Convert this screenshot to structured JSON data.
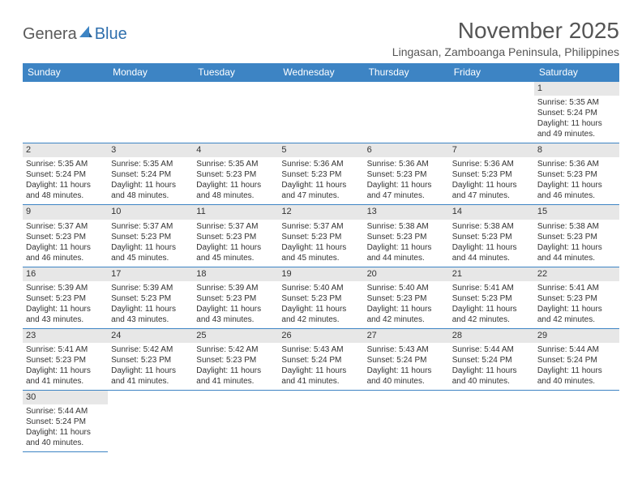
{
  "logo": {
    "part1": "Genera",
    "part2": "Blue"
  },
  "title": "November 2025",
  "location": "Lingasan, Zamboanga Peninsula, Philippines",
  "colors": {
    "header_bg": "#3d84c4",
    "header_text": "#ffffff",
    "daynum_bg": "#e7e7e7",
    "border": "#3d84c4",
    "title_text": "#555555",
    "body_text": "#333333",
    "logo_gray": "#5a5a5a",
    "logo_blue": "#2f6fad"
  },
  "day_headers": [
    "Sunday",
    "Monday",
    "Tuesday",
    "Wednesday",
    "Thursday",
    "Friday",
    "Saturday"
  ],
  "weeks": [
    [
      {
        "n": "",
        "sr": "",
        "ss": "",
        "dl": ""
      },
      {
        "n": "",
        "sr": "",
        "ss": "",
        "dl": ""
      },
      {
        "n": "",
        "sr": "",
        "ss": "",
        "dl": ""
      },
      {
        "n": "",
        "sr": "",
        "ss": "",
        "dl": ""
      },
      {
        "n": "",
        "sr": "",
        "ss": "",
        "dl": ""
      },
      {
        "n": "",
        "sr": "",
        "ss": "",
        "dl": ""
      },
      {
        "n": "1",
        "sr": "Sunrise: 5:35 AM",
        "ss": "Sunset: 5:24 PM",
        "dl": "Daylight: 11 hours and 49 minutes."
      }
    ],
    [
      {
        "n": "2",
        "sr": "Sunrise: 5:35 AM",
        "ss": "Sunset: 5:24 PM",
        "dl": "Daylight: 11 hours and 48 minutes."
      },
      {
        "n": "3",
        "sr": "Sunrise: 5:35 AM",
        "ss": "Sunset: 5:24 PM",
        "dl": "Daylight: 11 hours and 48 minutes."
      },
      {
        "n": "4",
        "sr": "Sunrise: 5:35 AM",
        "ss": "Sunset: 5:23 PM",
        "dl": "Daylight: 11 hours and 48 minutes."
      },
      {
        "n": "5",
        "sr": "Sunrise: 5:36 AM",
        "ss": "Sunset: 5:23 PM",
        "dl": "Daylight: 11 hours and 47 minutes."
      },
      {
        "n": "6",
        "sr": "Sunrise: 5:36 AM",
        "ss": "Sunset: 5:23 PM",
        "dl": "Daylight: 11 hours and 47 minutes."
      },
      {
        "n": "7",
        "sr": "Sunrise: 5:36 AM",
        "ss": "Sunset: 5:23 PM",
        "dl": "Daylight: 11 hours and 47 minutes."
      },
      {
        "n": "8",
        "sr": "Sunrise: 5:36 AM",
        "ss": "Sunset: 5:23 PM",
        "dl": "Daylight: 11 hours and 46 minutes."
      }
    ],
    [
      {
        "n": "9",
        "sr": "Sunrise: 5:37 AM",
        "ss": "Sunset: 5:23 PM",
        "dl": "Daylight: 11 hours and 46 minutes."
      },
      {
        "n": "10",
        "sr": "Sunrise: 5:37 AM",
        "ss": "Sunset: 5:23 PM",
        "dl": "Daylight: 11 hours and 45 minutes."
      },
      {
        "n": "11",
        "sr": "Sunrise: 5:37 AM",
        "ss": "Sunset: 5:23 PM",
        "dl": "Daylight: 11 hours and 45 minutes."
      },
      {
        "n": "12",
        "sr": "Sunrise: 5:37 AM",
        "ss": "Sunset: 5:23 PM",
        "dl": "Daylight: 11 hours and 45 minutes."
      },
      {
        "n": "13",
        "sr": "Sunrise: 5:38 AM",
        "ss": "Sunset: 5:23 PM",
        "dl": "Daylight: 11 hours and 44 minutes."
      },
      {
        "n": "14",
        "sr": "Sunrise: 5:38 AM",
        "ss": "Sunset: 5:23 PM",
        "dl": "Daylight: 11 hours and 44 minutes."
      },
      {
        "n": "15",
        "sr": "Sunrise: 5:38 AM",
        "ss": "Sunset: 5:23 PM",
        "dl": "Daylight: 11 hours and 44 minutes."
      }
    ],
    [
      {
        "n": "16",
        "sr": "Sunrise: 5:39 AM",
        "ss": "Sunset: 5:23 PM",
        "dl": "Daylight: 11 hours and 43 minutes."
      },
      {
        "n": "17",
        "sr": "Sunrise: 5:39 AM",
        "ss": "Sunset: 5:23 PM",
        "dl": "Daylight: 11 hours and 43 minutes."
      },
      {
        "n": "18",
        "sr": "Sunrise: 5:39 AM",
        "ss": "Sunset: 5:23 PM",
        "dl": "Daylight: 11 hours and 43 minutes."
      },
      {
        "n": "19",
        "sr": "Sunrise: 5:40 AM",
        "ss": "Sunset: 5:23 PM",
        "dl": "Daylight: 11 hours and 42 minutes."
      },
      {
        "n": "20",
        "sr": "Sunrise: 5:40 AM",
        "ss": "Sunset: 5:23 PM",
        "dl": "Daylight: 11 hours and 42 minutes."
      },
      {
        "n": "21",
        "sr": "Sunrise: 5:41 AM",
        "ss": "Sunset: 5:23 PM",
        "dl": "Daylight: 11 hours and 42 minutes."
      },
      {
        "n": "22",
        "sr": "Sunrise: 5:41 AM",
        "ss": "Sunset: 5:23 PM",
        "dl": "Daylight: 11 hours and 42 minutes."
      }
    ],
    [
      {
        "n": "23",
        "sr": "Sunrise: 5:41 AM",
        "ss": "Sunset: 5:23 PM",
        "dl": "Daylight: 11 hours and 41 minutes."
      },
      {
        "n": "24",
        "sr": "Sunrise: 5:42 AM",
        "ss": "Sunset: 5:23 PM",
        "dl": "Daylight: 11 hours and 41 minutes."
      },
      {
        "n": "25",
        "sr": "Sunrise: 5:42 AM",
        "ss": "Sunset: 5:23 PM",
        "dl": "Daylight: 11 hours and 41 minutes."
      },
      {
        "n": "26",
        "sr": "Sunrise: 5:43 AM",
        "ss": "Sunset: 5:24 PM",
        "dl": "Daylight: 11 hours and 41 minutes."
      },
      {
        "n": "27",
        "sr": "Sunrise: 5:43 AM",
        "ss": "Sunset: 5:24 PM",
        "dl": "Daylight: 11 hours and 40 minutes."
      },
      {
        "n": "28",
        "sr": "Sunrise: 5:44 AM",
        "ss": "Sunset: 5:24 PM",
        "dl": "Daylight: 11 hours and 40 minutes."
      },
      {
        "n": "29",
        "sr": "Sunrise: 5:44 AM",
        "ss": "Sunset: 5:24 PM",
        "dl": "Daylight: 11 hours and 40 minutes."
      }
    ],
    [
      {
        "n": "30",
        "sr": "Sunrise: 5:44 AM",
        "ss": "Sunset: 5:24 PM",
        "dl": "Daylight: 11 hours and 40 minutes."
      },
      {
        "n": "",
        "sr": "",
        "ss": "",
        "dl": ""
      },
      {
        "n": "",
        "sr": "",
        "ss": "",
        "dl": ""
      },
      {
        "n": "",
        "sr": "",
        "ss": "",
        "dl": ""
      },
      {
        "n": "",
        "sr": "",
        "ss": "",
        "dl": ""
      },
      {
        "n": "",
        "sr": "",
        "ss": "",
        "dl": ""
      },
      {
        "n": "",
        "sr": "",
        "ss": "",
        "dl": ""
      }
    ]
  ]
}
